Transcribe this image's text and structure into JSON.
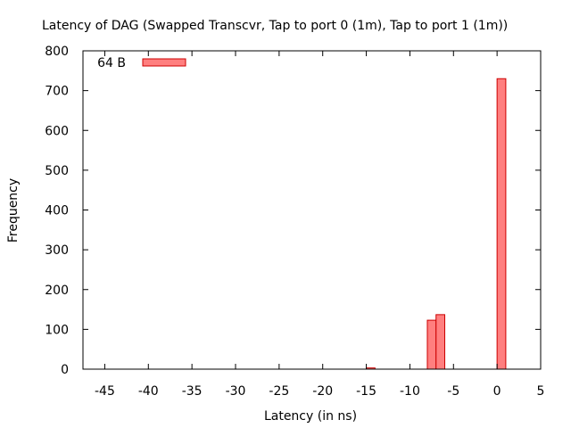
{
  "chart_data": {
    "type": "bar",
    "title": "Latency of DAG (Swapped Transcvr, Tap to port 0 (1m), Tap to port 1 (1m))",
    "xlabel": "Latency (in ns)",
    "ylabel": "Frequency",
    "xlim": [
      -47.5,
      5
    ],
    "ylim": [
      0,
      800
    ],
    "xticks": [
      -45,
      -40,
      -35,
      -30,
      -25,
      -20,
      -15,
      -10,
      -5,
      0,
      5
    ],
    "yticks": [
      0,
      100,
      200,
      300,
      400,
      500,
      600,
      700,
      800
    ],
    "legend_position": "top-left",
    "grid": false,
    "series": [
      {
        "name": "64 B",
        "color": "#ff7f7f",
        "edge_color": "#cc0000",
        "bin_width": 1,
        "bars": [
          {
            "x": -14.5,
            "value": 3
          },
          {
            "x": -7.5,
            "value": 123
          },
          {
            "x": -6.5,
            "value": 137
          },
          {
            "x": 0.5,
            "value": 730
          }
        ]
      }
    ]
  }
}
